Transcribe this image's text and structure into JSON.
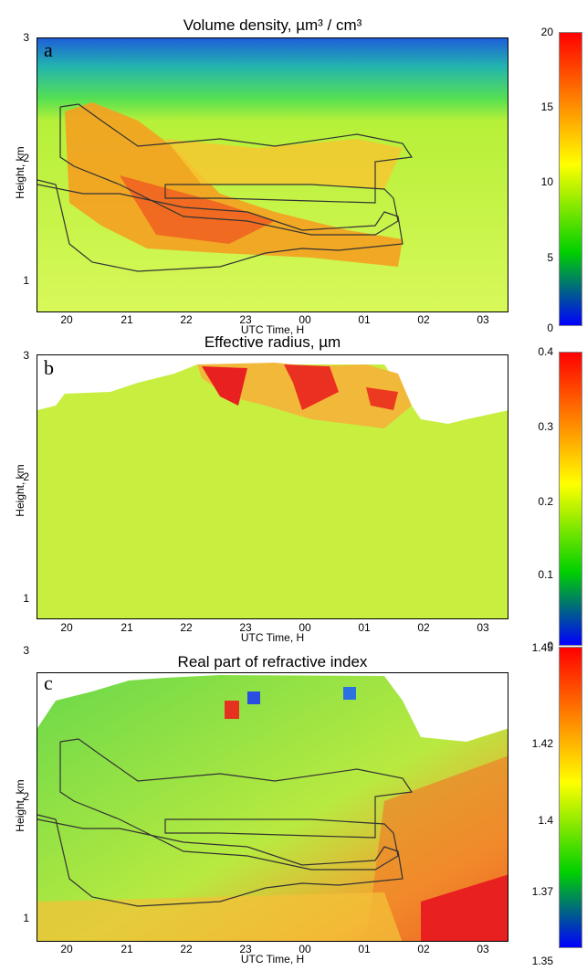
{
  "panels": [
    {
      "letter": "a",
      "title_main": "Volume density, ",
      "title_unit": "µm³ / cm³",
      "ylabel": "Height, km",
      "xlabel": "UTC Time, H",
      "yticks": [
        "3",
        "2",
        "1"
      ],
      "xticks": [
        "20",
        "21",
        "22",
        "23",
        "00",
        "01",
        "02",
        "03"
      ],
      "cbar_ticks": [
        "20",
        "15",
        "10",
        "5",
        "0"
      ]
    },
    {
      "letter": "b",
      "title_main": "Effective radius, ",
      "title_unit": "µm",
      "ylabel": "Height, km",
      "xlabel": "UTC Time, H",
      "yticks": [
        "3",
        "2",
        "1"
      ],
      "xticks": [
        "20",
        "21",
        "22",
        "23",
        "00",
        "01",
        "02",
        "03"
      ],
      "cbar_ticks": [
        "0.4",
        "0.3",
        "0.2",
        "0.1",
        "0"
      ]
    },
    {
      "letter": "c",
      "title_main": "Real part of refractive index",
      "title_unit": "",
      "ylabel": "Height, km",
      "xlabel": "UTC Time, H",
      "yticks": [
        "3",
        "2",
        "1"
      ],
      "xticks": [
        "20",
        "21",
        "22",
        "23",
        "00",
        "01",
        "02",
        "03"
      ],
      "cbar_ticks": [
        "1.45",
        "1.42",
        "1.4",
        "1.37",
        "1.35"
      ]
    }
  ],
  "chart_data": [
    {
      "type": "heatmap",
      "title": "Volume density, µm³ / cm³",
      "xlabel": "UTC Time, H",
      "ylabel": "Height, km",
      "x_ticks": [
        "20",
        "21",
        "22",
        "23",
        "00",
        "01",
        "02",
        "03"
      ],
      "y_ticks": [
        1,
        2,
        3
      ],
      "color_range": [
        0,
        20
      ],
      "colors": [
        "#0000ff",
        "#00cc00",
        "#ffff00",
        "#ff0000"
      ]
    },
    {
      "type": "heatmap",
      "title": "Effective radius, µm",
      "xlabel": "UTC Time, H",
      "ylabel": "Height, km",
      "x_ticks": [
        "20",
        "21",
        "22",
        "23",
        "00",
        "01",
        "02",
        "03"
      ],
      "y_ticks": [
        1,
        2,
        3
      ],
      "color_range": [
        0,
        0.4
      ],
      "colors": [
        "#0000ff",
        "#00cc00",
        "#ffff00",
        "#ff0000"
      ]
    },
    {
      "type": "heatmap",
      "title": "Real part of refractive index",
      "xlabel": "UTC Time, H",
      "ylabel": "Height, km",
      "x_ticks": [
        "20",
        "21",
        "22",
        "23",
        "00",
        "01",
        "02",
        "03"
      ],
      "y_ticks": [
        1,
        2,
        3
      ],
      "color_range": [
        1.35,
        1.45
      ],
      "colors": [
        "#0000ff",
        "#00cc00",
        "#ffff00",
        "#ff0000"
      ]
    }
  ]
}
